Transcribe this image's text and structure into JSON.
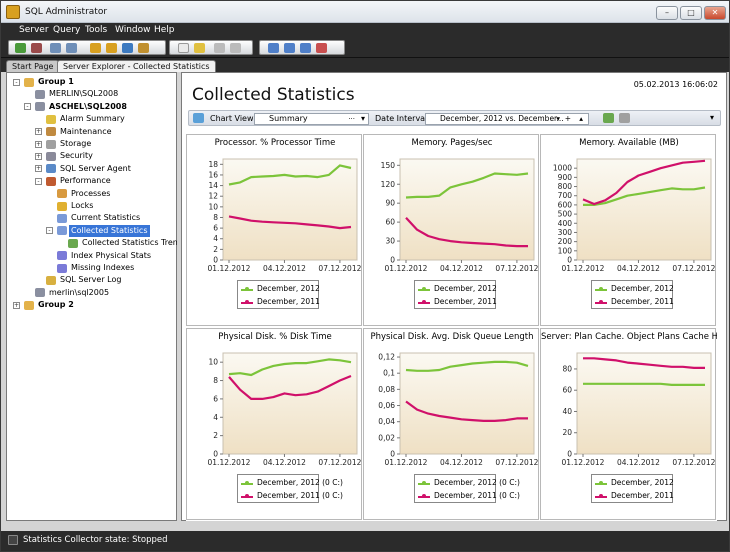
{
  "window": {
    "title": "SQL Administrator",
    "minimize": "–",
    "maximize": "□",
    "close": "✕"
  },
  "menu": [
    "Server",
    "Query",
    "Tools",
    "Window",
    "Help"
  ],
  "tabs": [
    {
      "label": "Start Page"
    },
    {
      "label": "Server Explorer - Collected Statistics"
    }
  ],
  "tree": [
    {
      "label": "Group 1",
      "bold": true,
      "level": 0,
      "icon": "group-icon",
      "exp": "-"
    },
    {
      "label": "MERLIN\\SQL2008",
      "level": 1,
      "icon": "server-icon",
      "exp": ""
    },
    {
      "label": "ASCHEL\\SQL2008",
      "bold": true,
      "level": 1,
      "icon": "server-icon",
      "exp": "-"
    },
    {
      "label": "Alarm Summary",
      "level": 2,
      "icon": "alarm-icon",
      "exp": ""
    },
    {
      "label": "Maintenance",
      "level": 2,
      "icon": "maintenance-icon",
      "exp": "+"
    },
    {
      "label": "Storage",
      "level": 2,
      "icon": "storage-icon",
      "exp": "+"
    },
    {
      "label": "Security",
      "level": 2,
      "icon": "security-icon",
      "exp": "+"
    },
    {
      "label": "SQL Server Agent",
      "level": 2,
      "icon": "agent-icon",
      "exp": "+"
    },
    {
      "label": "Performance",
      "level": 2,
      "icon": "performance-icon",
      "exp": "-"
    },
    {
      "label": "Processes",
      "level": 3,
      "icon": "processes-icon",
      "exp": ""
    },
    {
      "label": "Locks",
      "level": 3,
      "icon": "lock-icon",
      "exp": ""
    },
    {
      "label": "Current Statistics",
      "level": 3,
      "icon": "statistics-icon",
      "exp": ""
    },
    {
      "label": "Collected Statistics",
      "level": 3,
      "icon": "statistics-icon",
      "exp": "-",
      "selected": true
    },
    {
      "label": "Collected Statistics Trend",
      "level": 4,
      "icon": "trend-icon",
      "exp": ""
    },
    {
      "label": "Index Physical Stats",
      "level": 3,
      "icon": "index-icon",
      "exp": ""
    },
    {
      "label": "Missing Indexes",
      "level": 3,
      "icon": "index-icon",
      "exp": ""
    },
    {
      "label": "SQL Server Log",
      "level": 2,
      "icon": "log-icon",
      "exp": ""
    },
    {
      "label": "merlin\\sql2005",
      "level": 1,
      "icon": "server-icon",
      "exp": ""
    },
    {
      "label": "Group 2",
      "bold": true,
      "level": 0,
      "icon": "group-icon",
      "exp": "+"
    }
  ],
  "content": {
    "title": "Collected Statistics",
    "datetime": "05.02.2013 16:06:02",
    "chart_view_label": "Chart View",
    "chart_view_value": "Summary",
    "chart_view_more": "···",
    "date_intervals_label": "Date Intervals",
    "date_intervals_value": "December, 2012 vs. December...",
    "drop_arrow": "▾",
    "spin_up": "▴",
    "spin_add": "+"
  },
  "colors": {
    "series_2012": "#7cc43a",
    "series_2011": "#d0106a",
    "plot_bg_top": "#fbf9f2",
    "plot_bg_bottom": "#efe0c4",
    "selection": "#3875d7"
  },
  "chart_data": [
    {
      "type": "line",
      "title": "Processor. % Processor Time",
      "x_ticks": [
        "01.12.2012",
        "04.12.2012",
        "07.12.2012"
      ],
      "ylim": [
        0,
        19
      ],
      "y_ticks": [
        0,
        2,
        4,
        6,
        8,
        10,
        12,
        14,
        16,
        18
      ],
      "series": [
        {
          "name": "December, 2012",
          "color": "#7cc43a",
          "x": [
            0,
            1,
            2,
            3,
            4,
            5,
            6,
            7,
            8,
            9,
            10,
            11
          ],
          "values": [
            14.2,
            14.6,
            15.6,
            15.7,
            15.8,
            16.0,
            15.7,
            15.8,
            15.6,
            16.0,
            17.8,
            17.3
          ]
        },
        {
          "name": "December, 2011",
          "color": "#d0106a",
          "x": [
            0,
            1,
            2,
            3,
            4,
            5,
            6,
            7,
            8,
            9,
            10,
            11
          ],
          "values": [
            8.2,
            7.8,
            7.4,
            7.2,
            7.1,
            7.0,
            6.9,
            6.7,
            6.5,
            6.3,
            6.0,
            6.2
          ]
        }
      ]
    },
    {
      "type": "line",
      "title": "Memory. Pages/sec",
      "x_ticks": [
        "01.12.2012",
        "04.12.2012",
        "07.12.2012"
      ],
      "ylim": [
        0,
        160
      ],
      "y_ticks": [
        0,
        30,
        60,
        90,
        120,
        150
      ],
      "series": [
        {
          "name": "December, 2012",
          "color": "#7cc43a",
          "x": [
            0,
            1,
            2,
            3,
            4,
            5,
            6,
            7,
            8,
            9,
            10,
            11
          ],
          "values": [
            99,
            100,
            100,
            102,
            115,
            120,
            124,
            130,
            137,
            136,
            135,
            137
          ]
        },
        {
          "name": "December, 2011",
          "color": "#d0106a",
          "x": [
            0,
            1,
            2,
            3,
            4,
            5,
            6,
            7,
            8,
            9,
            10,
            11
          ],
          "values": [
            67,
            48,
            38,
            33,
            30,
            28,
            27,
            26,
            25,
            23,
            22,
            22
          ]
        }
      ]
    },
    {
      "type": "line",
      "title": "Memory. Available (MB)",
      "x_ticks": [
        "01.12.2012",
        "04.12.2012",
        "07.12.2012"
      ],
      "ylim": [
        0,
        1100
      ],
      "y_ticks": [
        0,
        100,
        200,
        300,
        400,
        500,
        600,
        700,
        800,
        900,
        1000
      ],
      "series": [
        {
          "name": "December, 2012",
          "color": "#7cc43a",
          "x": [
            0,
            1,
            2,
            3,
            4,
            5,
            6,
            7,
            8,
            9,
            10,
            11
          ],
          "values": [
            600,
            600,
            620,
            660,
            700,
            720,
            740,
            760,
            780,
            770,
            770,
            790
          ]
        },
        {
          "name": "December, 2011",
          "color": "#d0106a",
          "x": [
            0,
            1,
            2,
            3,
            4,
            5,
            6,
            7,
            8,
            9,
            10,
            11
          ],
          "values": [
            660,
            610,
            650,
            730,
            850,
            920,
            960,
            1000,
            1030,
            1060,
            1070,
            1080
          ]
        }
      ]
    },
    {
      "type": "line",
      "title": "Physical Disk. % Disk Time",
      "x_ticks": [
        "01.12.2012",
        "04.12.2012",
        "07.12.2012"
      ],
      "ylim": [
        0,
        11
      ],
      "y_ticks": [
        0,
        2,
        4,
        6,
        8,
        10
      ],
      "series": [
        {
          "name": "December, 2012 (0 C:)",
          "color": "#7cc43a",
          "x": [
            0,
            1,
            2,
            3,
            4,
            5,
            6,
            7,
            8,
            9,
            10,
            11
          ],
          "values": [
            8.7,
            8.8,
            8.6,
            9.2,
            9.6,
            9.8,
            9.9,
            9.9,
            10.1,
            10.3,
            10.2,
            10.0
          ]
        },
        {
          "name": "December, 2011 (0 C:)",
          "color": "#d0106a",
          "x": [
            0,
            1,
            2,
            3,
            4,
            5,
            6,
            7,
            8,
            9,
            10,
            11
          ],
          "values": [
            8.4,
            7.0,
            6.0,
            6.0,
            6.2,
            6.6,
            6.4,
            6.5,
            6.8,
            7.4,
            8.0,
            8.5
          ]
        }
      ]
    },
    {
      "type": "line",
      "title": "Physical Disk. Avg. Disk Queue Length",
      "x_ticks": [
        "01.12.2012",
        "04.12.2012",
        "07.12.2012"
      ],
      "ylim": [
        0,
        0.125
      ],
      "y_ticks": [
        "0",
        "0,02",
        "0,04",
        "0,06",
        "0,08",
        "0,1",
        "0,12"
      ],
      "series": [
        {
          "name": "December, 2012 (0 C:)",
          "color": "#7cc43a",
          "x": [
            0,
            1,
            2,
            3,
            4,
            5,
            6,
            7,
            8,
            9,
            10,
            11
          ],
          "values": [
            0.104,
            0.103,
            0.103,
            0.104,
            0.108,
            0.11,
            0.112,
            0.113,
            0.114,
            0.114,
            0.113,
            0.109
          ]
        },
        {
          "name": "December, 2011 (0 C:)",
          "color": "#d0106a",
          "x": [
            0,
            1,
            2,
            3,
            4,
            5,
            6,
            7,
            8,
            9,
            10,
            11
          ],
          "values": [
            0.065,
            0.055,
            0.05,
            0.047,
            0.045,
            0.043,
            0.042,
            0.041,
            0.041,
            0.042,
            0.044,
            0.044
          ]
        }
      ]
    },
    {
      "type": "line",
      "title": "Server: Plan Cache. Object Plans Cache Hit Ratio",
      "x_ticks": [
        "01.12.2012",
        "04.12.2012",
        "07.12.2012"
      ],
      "ylim": [
        0,
        95
      ],
      "y_ticks": [
        0,
        20,
        40,
        60,
        80
      ],
      "series": [
        {
          "name": "December, 2012",
          "color": "#7cc43a",
          "x": [
            0,
            1,
            2,
            3,
            4,
            5,
            6,
            7,
            8,
            9,
            10,
            11
          ],
          "values": [
            66,
            66,
            66,
            66,
            66,
            66,
            66,
            66,
            65,
            65,
            65,
            65
          ]
        },
        {
          "name": "December, 2011",
          "color": "#d0106a",
          "x": [
            0,
            1,
            2,
            3,
            4,
            5,
            6,
            7,
            8,
            9,
            10,
            11
          ],
          "values": [
            90,
            90,
            89,
            88,
            86,
            85,
            84,
            83,
            82,
            82,
            81,
            81
          ]
        }
      ]
    }
  ],
  "status": {
    "text": "Statistics Collector state: Stopped"
  }
}
